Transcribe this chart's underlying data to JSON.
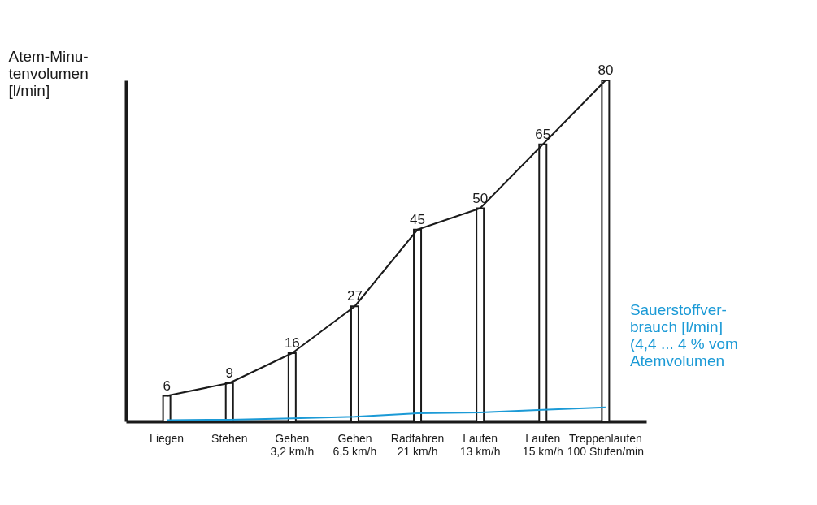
{
  "chart_data": {
    "type": "bar",
    "ylabel": "Atem-Minu-\ntenvolumen\n[l/min]",
    "categories": [
      "Liegen",
      "Stehen",
      "Gehen\n3,2 km/h",
      "Gehen\n6,5 km/h",
      "Radfahren\n21 km/h",
      "Laufen\n13 km/h",
      "Laufen\n15 km/h",
      "Treppenlaufen\n100 Stufen/min"
    ],
    "series": [
      {
        "color": "#ffffff",
        "values": [
          6,
          9,
          16,
          27,
          45,
          50,
          65,
          80
        ],
        "value_labels": [
          "6",
          "9",
          "16",
          "27",
          "45",
          "50",
          "65",
          "80"
        ]
      },
      {
        "type": "line",
        "color": "#1a1a1a",
        "values": [
          6,
          9,
          16,
          27,
          45,
          50,
          65,
          80
        ]
      },
      {
        "type": "line",
        "name": "Sauerstoffver-\nbrauch [l/min]\n(4,4 ... 4 % vom\nAtemvolumen",
        "color": "#1b9ad6",
        "values": [
          0.3,
          0.4,
          0.7,
          1.1,
          1.9,
          2.1,
          2.7,
          3.3
        ]
      }
    ],
    "tick_labels": "x",
    "grid": false
  }
}
